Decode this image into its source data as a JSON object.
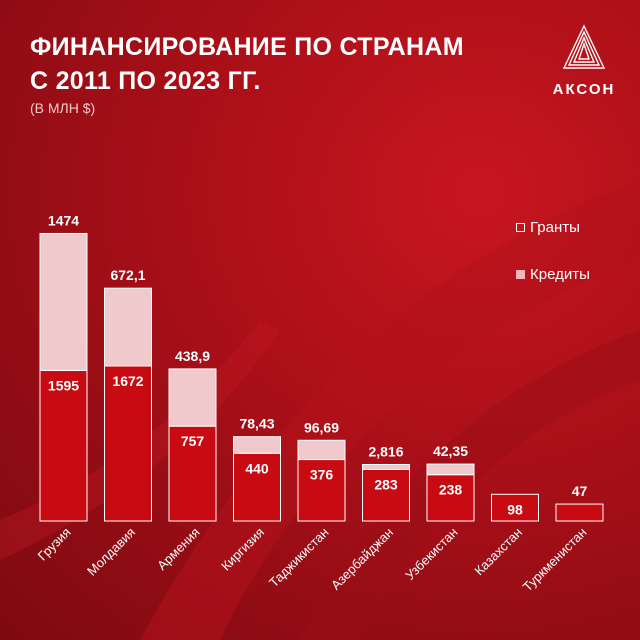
{
  "title_line1": "ФИНАНСИРОВАНИЕ ПО СТРАНАМ",
  "title_line2": "С 2011 ПО 2023 ГГ.",
  "subtitle": "(В МЛН $)",
  "brand": "АКСОН",
  "legend": {
    "grants": "Гранты",
    "credits": "Кредиты"
  },
  "colors": {
    "background": "#a80f18",
    "credit_bar": "#c80a12",
    "grant_bar": "#f0c9cc",
    "text": "#ffffff"
  },
  "chart_data": {
    "type": "bar",
    "stacked": true,
    "categories": [
      "Грузия",
      "Молдавия",
      "Армения",
      "Киргизия",
      "Таджикистан",
      "Азербайджан",
      "Узбекистан",
      "Казахстан",
      "Туркменистан"
    ],
    "series": [
      {
        "name": "Кредиты",
        "values": [
          1595,
          1672,
          757,
          440,
          376,
          283,
          238,
          98,
          47
        ]
      },
      {
        "name": "Гранты",
        "values": [
          1474,
          672.1,
          438.9,
          78.43,
          96.69,
          2.816,
          42.35,
          null,
          null
        ]
      }
    ],
    "value_labels": {
      "Кредиты": [
        "1595",
        "1672",
        "757",
        "440",
        "376",
        "283",
        "238",
        "98",
        "47"
      ],
      "Гранты": [
        "1474",
        "672,1",
        "438,9",
        "78,43",
        "96,69",
        "2,816",
        "42,35",
        "",
        ""
      ]
    },
    "legend_position": "right",
    "grid": false
  }
}
